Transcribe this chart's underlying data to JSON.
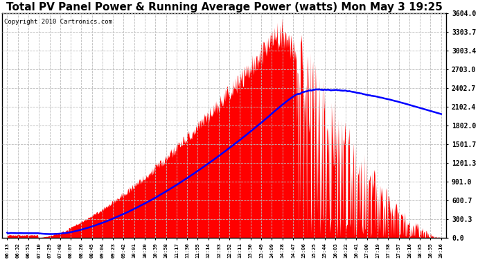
{
  "title": "Total PV Panel Power & Running Average Power (watts) Mon May 3 19:25",
  "copyright": "Copyright 2010 Cartronics.com",
  "yticks": [
    0.0,
    300.3,
    600.7,
    901.0,
    1201.3,
    1501.7,
    1802.0,
    2102.4,
    2402.7,
    2703.0,
    3003.4,
    3303.7,
    3604.0
  ],
  "xlabels": [
    "06:13",
    "06:32",
    "06:51",
    "07:10",
    "07:29",
    "07:48",
    "08:07",
    "08:26",
    "08:45",
    "09:04",
    "09:23",
    "09:42",
    "10:01",
    "10:20",
    "10:39",
    "10:58",
    "11:17",
    "11:36",
    "11:55",
    "12:14",
    "12:33",
    "12:52",
    "13:11",
    "13:30",
    "13:49",
    "14:09",
    "14:28",
    "14:47",
    "15:06",
    "15:25",
    "15:44",
    "16:03",
    "16:22",
    "16:41",
    "17:00",
    "17:19",
    "17:38",
    "17:57",
    "18:16",
    "18:35",
    "18:55",
    "19:16"
  ],
  "bg_color": "#ffffff",
  "plot_bg_color": "#ffffff",
  "fill_color": "#ff0000",
  "line_color": "#0000ff",
  "grid_color": "#bbbbbb",
  "title_fontsize": 11,
  "copyright_fontsize": 6.5,
  "ymax": 3604.0,
  "ymin": 0.0
}
